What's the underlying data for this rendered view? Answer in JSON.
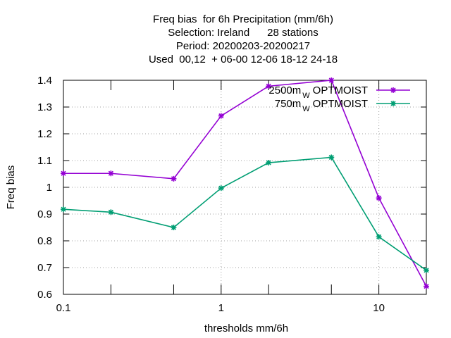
{
  "chart_data": {
    "type": "line",
    "title_lines": [
      "Freq bias  for 6h Precipitation (mm/6h)",
      "Selection: Ireland      28 stations",
      "Period: 20200203-20200217",
      "Used  00,12  + 06-00 12-06 18-12 24-18"
    ],
    "xlabel": "thresholds mm/6h",
    "ylabel": "Freq bias",
    "x_scale": "log",
    "xlim": [
      0.1,
      20
    ],
    "ylim": [
      0.6,
      1.4
    ],
    "x_ticks": [
      {
        "value": 0.1,
        "label": "0.1"
      },
      {
        "value": 1,
        "label": "1"
      },
      {
        "value": 10,
        "label": "10"
      }
    ],
    "y_ticks": [
      {
        "value": 0.6,
        "label": "0.6"
      },
      {
        "value": 0.7,
        "label": "0.7"
      },
      {
        "value": 0.8,
        "label": "0.8"
      },
      {
        "value": 0.9,
        "label": "0.9"
      },
      {
        "value": 1.0,
        "label": "1"
      },
      {
        "value": 1.1,
        "label": "1.1"
      },
      {
        "value": 1.2,
        "label": "1.2"
      },
      {
        "value": 1.3,
        "label": "1.3"
      },
      {
        "value": 1.4,
        "label": "1.4"
      }
    ],
    "grid": true,
    "legend_position": "top-right",
    "x": [
      0.1,
      0.2,
      0.5,
      1,
      2,
      5,
      10,
      20
    ],
    "series": [
      {
        "name_main": "2500m",
        "name_sub": "W",
        "name_tail": "OPTMOIST",
        "color": "#9400d3",
        "values": [
          1.052,
          1.052,
          1.032,
          1.267,
          1.378,
          1.4,
          0.96,
          0.63
        ]
      },
      {
        "name_main": "750m",
        "name_sub": "W",
        "name_tail": "OPTMOIST",
        "color": "#009e73",
        "values": [
          0.918,
          0.907,
          0.85,
          0.997,
          1.092,
          1.112,
          0.815,
          0.69
        ]
      }
    ]
  }
}
